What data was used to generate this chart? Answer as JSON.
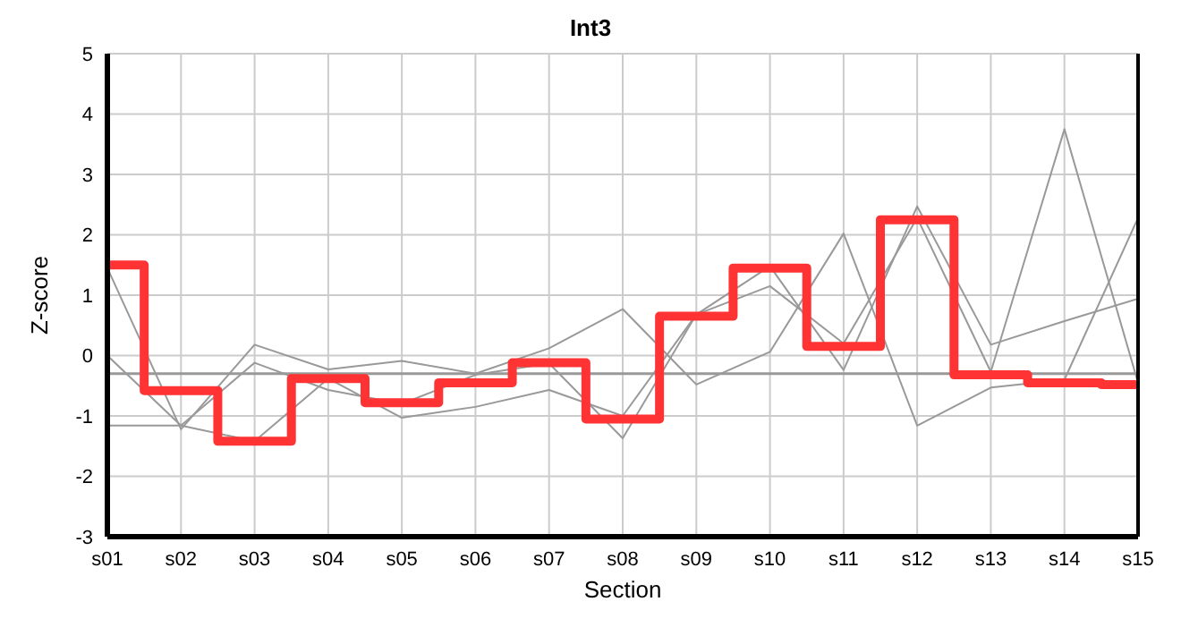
{
  "chart_data": {
    "type": "line",
    "title": "Int3",
    "xlabel": "Section",
    "ylabel": "Z-score",
    "categories": [
      "s01",
      "s02",
      "s03",
      "s04",
      "s05",
      "s06",
      "s07",
      "s08",
      "s09",
      "s10",
      "s11",
      "s12",
      "s13",
      "s14",
      "s15"
    ],
    "series": [
      {
        "color": "#999999",
        "values": [
          1.45,
          -1.22,
          0.18,
          -0.23,
          -0.09,
          -0.3,
          0.12,
          0.77,
          -0.48,
          0.06,
          2.02,
          -1.16,
          -0.53,
          -0.4,
          2.28
        ]
      },
      {
        "color": "#999999",
        "values": [
          0.0,
          -1.16,
          -0.12,
          -0.57,
          -0.8,
          -0.32,
          -0.13,
          -1.37,
          0.68,
          1.48,
          -0.24,
          2.47,
          0.18,
          0.57,
          0.94
        ]
      },
      {
        "color": "#999999",
        "values": [
          -1.16,
          -1.16,
          -1.42,
          -0.38,
          -1.03,
          -0.85,
          -0.57,
          -1.0,
          0.68,
          1.15,
          0.2,
          2.28,
          -0.27,
          3.75,
          -0.45
        ]
      },
      {
        "type": "step",
        "color": "#ff3333",
        "values": [
          1.5,
          -0.58,
          -1.42,
          -0.38,
          -0.78,
          -0.45,
          -0.12,
          -1.05,
          0.65,
          1.45,
          0.15,
          2.25,
          -0.32,
          -0.45,
          -0.48
        ]
      }
    ],
    "ref_lines": [
      {
        "axis": "y",
        "value": -0.3,
        "color": "#999999"
      }
    ],
    "ylim": [
      -3,
      5
    ],
    "yticks": [
      -3,
      -2,
      -1,
      0,
      1,
      2,
      3,
      4,
      5
    ],
    "grid": true,
    "marker": "none",
    "line_style": "solid"
  }
}
